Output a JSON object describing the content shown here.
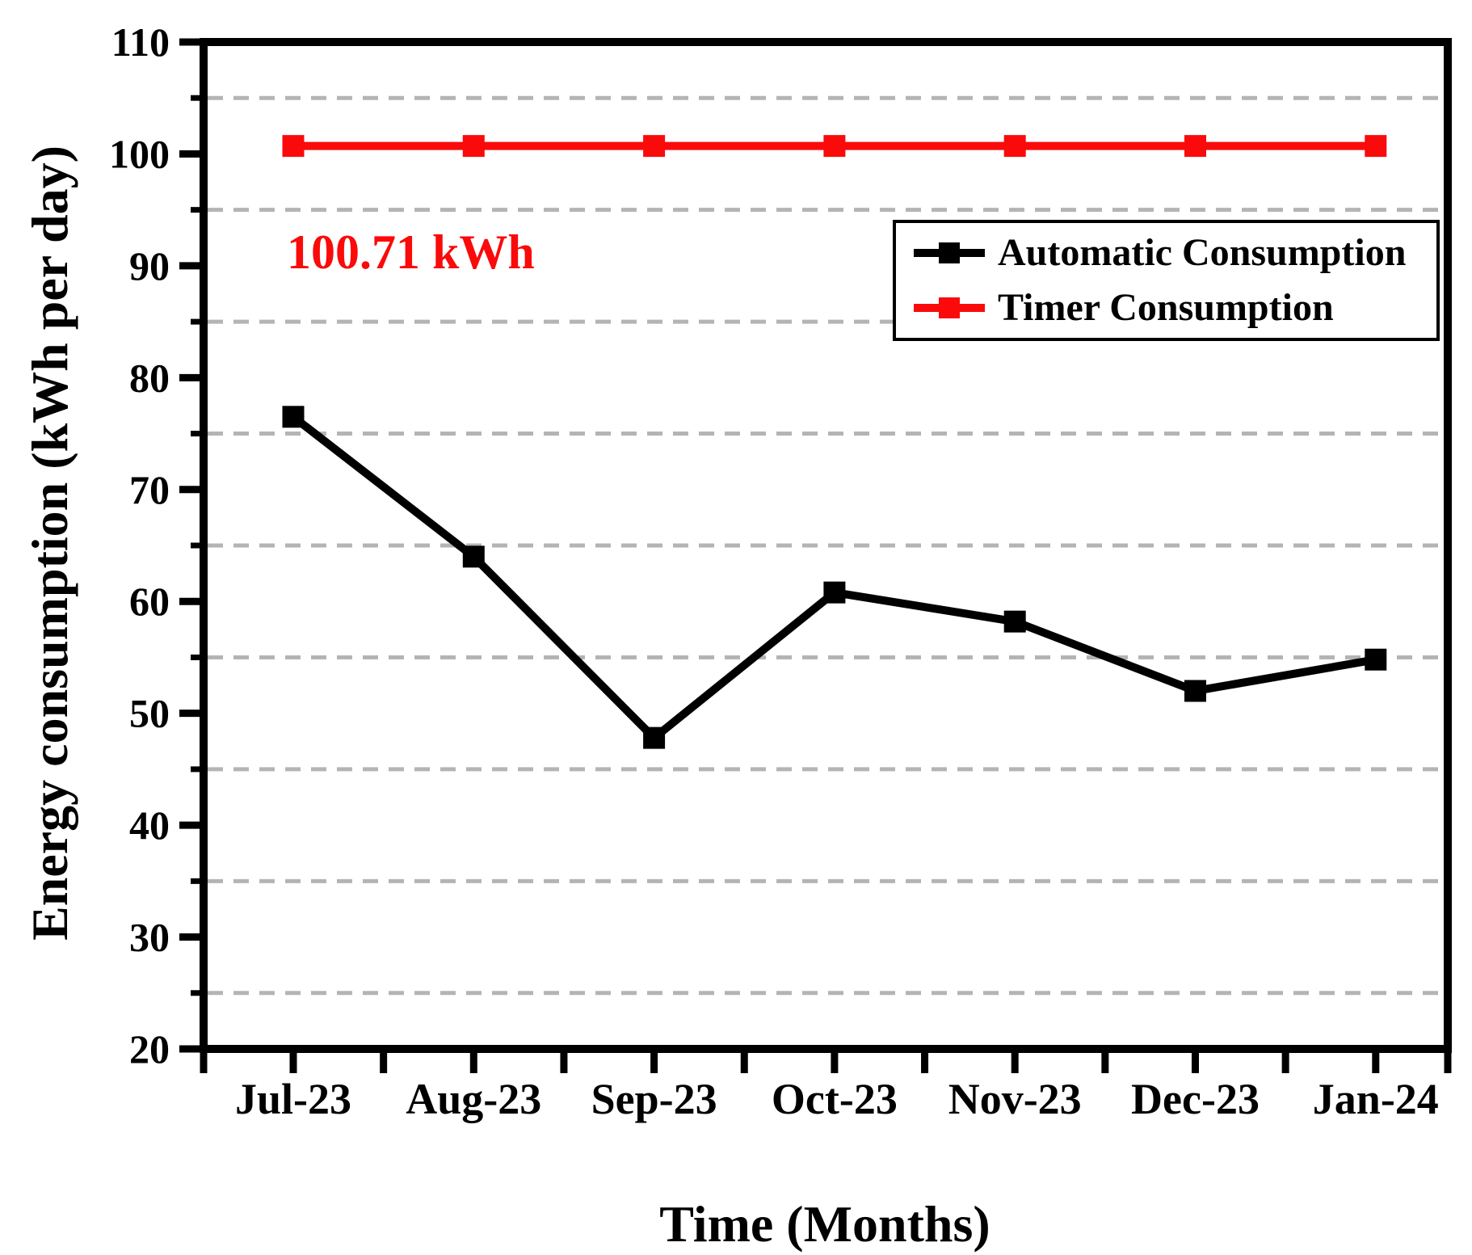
{
  "chart_data": {
    "type": "line",
    "title": "",
    "xlabel": "Time (Months)",
    "ylabel": "Energy consumption (kWh per day)",
    "categories": [
      "Jul-23",
      "Aug-23",
      "Sep-23",
      "Oct-23",
      "Nov-23",
      "Dec-23",
      "Jan-24"
    ],
    "series": [
      {
        "name": "Automatic Consumption",
        "color": "#000000",
        "marker": "square",
        "values": [
          76.5,
          64.0,
          47.8,
          60.8,
          58.2,
          52.0,
          54.8
        ]
      },
      {
        "name": "Timer Consumption",
        "color": "#fa0a0a",
        "marker": "square",
        "values": [
          100.71,
          100.71,
          100.71,
          100.71,
          100.71,
          100.71,
          100.71
        ]
      }
    ],
    "ylim": [
      20,
      110
    ],
    "y_major_ticks": [
      20,
      30,
      40,
      50,
      60,
      70,
      80,
      90,
      100,
      110
    ],
    "y_gridlines": [
      25,
      35,
      45,
      55,
      65,
      75,
      85,
      95,
      105
    ],
    "gridline_style": "dashed",
    "gridline_color": "#b4b4b4",
    "legend_position": "upper right",
    "annotation": {
      "text": "100.71 kWh",
      "color": "#fa0a0a"
    }
  }
}
